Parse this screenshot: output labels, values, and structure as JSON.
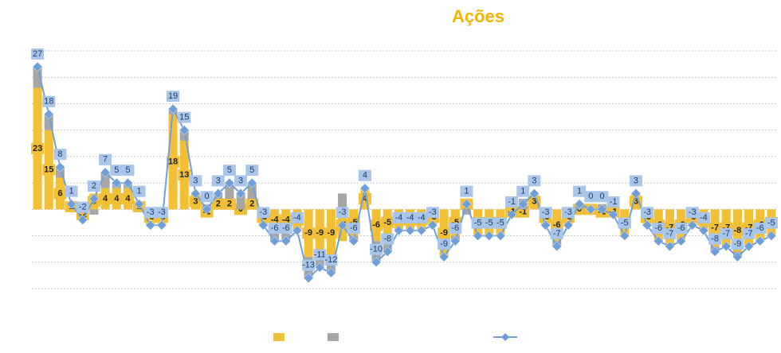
{
  "chart_data": {
    "type": "bar",
    "title": "Ações",
    "categories": [
      null,
      null,
      null,
      null,
      null,
      null,
      null,
      null,
      null,
      null,
      null,
      null,
      null,
      null,
      null,
      null,
      null,
      null,
      null,
      null,
      null,
      null,
      null,
      null,
      null,
      null,
      null,
      null,
      null,
      null,
      null,
      null,
      null,
      null,
      null,
      null,
      null,
      null,
      null,
      null,
      null,
      null,
      null,
      null,
      null,
      null,
      null,
      null,
      null,
      null,
      null,
      null,
      null,
      null,
      null,
      null,
      null,
      null,
      null,
      null,
      null,
      null,
      null,
      null,
      null,
      null
    ],
    "series": [
      {
        "type": "bar",
        "color": "#f2c037",
        "labels": true,
        "values": [
          23,
          15,
          6,
          1,
          -2,
          3,
          4,
          4,
          4,
          1,
          -3,
          -3,
          18,
          13,
          3,
          -1,
          2,
          2,
          0,
          2,
          -3,
          -4,
          -4,
          -4,
          -9,
          -9,
          -9,
          -6,
          -5,
          4,
          -6,
          -5,
          -4,
          -4,
          -4,
          -3,
          -9,
          -5,
          2,
          -5,
          -5,
          -5,
          -1,
          -1,
          3,
          -3,
          -6,
          -3,
          0,
          0,
          -1,
          -1,
          -5,
          3,
          -3,
          -6,
          -7,
          -6,
          -3,
          -4,
          -7,
          -7,
          -8,
          -7,
          -6,
          -5
        ]
      },
      {
        "type": "bar",
        "color": "#a6a6a6",
        "labels": false,
        "values": [
          4,
          3,
          2,
          0,
          0,
          -1,
          3,
          1,
          1,
          0,
          0,
          0,
          1,
          2,
          0,
          1,
          1,
          3,
          3,
          3,
          0,
          -2,
          -2,
          0,
          -4,
          -2,
          -3,
          3,
          -1,
          0,
          -4,
          -3,
          0,
          0,
          0,
          0,
          0,
          -1,
          -1,
          0,
          0,
          0,
          0,
          2,
          0,
          0,
          -1,
          0,
          1,
          0,
          1,
          0,
          0,
          0,
          0,
          0,
          0,
          0,
          0,
          0,
          -1,
          0,
          -1,
          0,
          0,
          0
        ]
      },
      {
        "type": "line",
        "color": "#6f9fd8",
        "label_color": "#a9c6ea",
        "labels": true,
        "values": [
          27,
          18,
          8,
          1,
          -2,
          2,
          7,
          5,
          5,
          1,
          -3,
          -3,
          19,
          15,
          3,
          0,
          3,
          5,
          3,
          5,
          -3,
          -6,
          -6,
          -4,
          -13,
          -11,
          -12,
          -3,
          -6,
          4,
          -10,
          -8,
          -4,
          -4,
          -4,
          -3,
          -9,
          -6,
          1,
          -5,
          -5,
          -5,
          -1,
          1,
          3,
          -3,
          -7,
          -3,
          1,
          0,
          0,
          -1,
          -5,
          3,
          -3,
          -6,
          -7,
          -6,
          -3,
          -4,
          -8,
          -7,
          -9,
          -7,
          -6,
          -5
        ]
      }
    ],
    "ylim": [
      -15,
      30
    ],
    "yticks": [
      -15,
      -10,
      -5,
      0,
      5,
      10,
      15,
      20,
      25,
      30
    ],
    "grid": true,
    "title_color": "#f0b400"
  }
}
